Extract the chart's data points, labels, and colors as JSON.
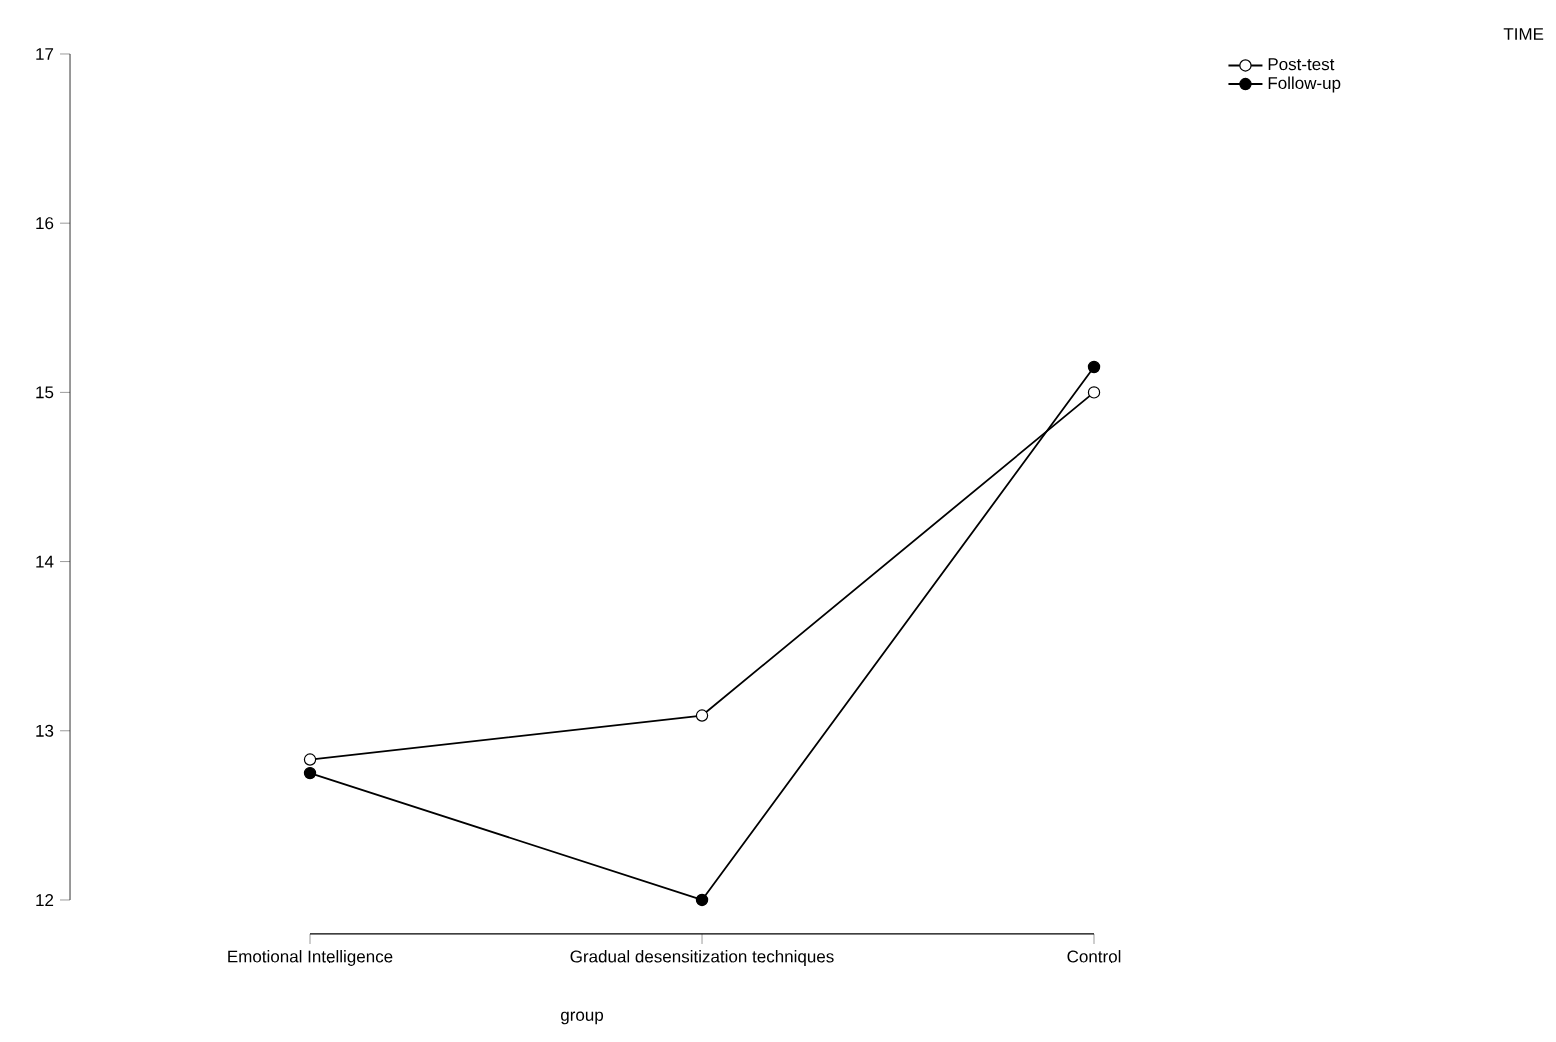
{
  "chart_data": {
    "type": "line",
    "xlabel": "group",
    "legend_title": "TIME",
    "categories": [
      "Emotional Intelligence",
      "Gradual desensitization techniques",
      "Control"
    ],
    "series": [
      {
        "name": "Post-test",
        "color": "#000000",
        "values": [
          12.83,
          13.09,
          15.0
        ]
      },
      {
        "name": "Follow-up",
        "color": "#000000",
        "values": [
          12.75,
          12.0,
          15.15
        ]
      }
    ],
    "ylim": [
      12,
      17
    ],
    "yticks": [
      12,
      13,
      14,
      15,
      16,
      17
    ],
    "legend": "top right",
    "marker": "circle",
    "grid": false
  }
}
